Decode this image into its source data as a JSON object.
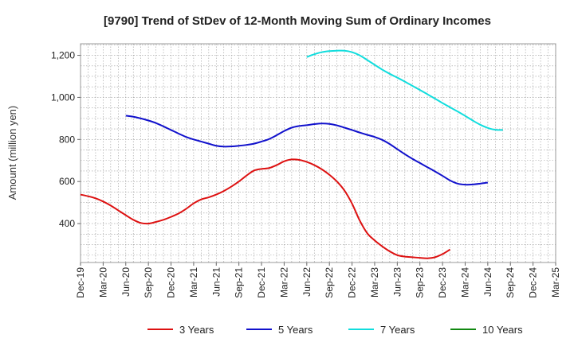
{
  "chart_data": {
    "type": "line",
    "title": "[9790]  Trend of StDev of 12-Month Moving Sum of Ordinary Incomes",
    "xlabel": "",
    "ylabel": "Amount (million yen)",
    "x_tick_labels": [
      "Dec-19",
      "Mar-20",
      "Jun-20",
      "Sep-20",
      "Dec-20",
      "Mar-21",
      "Jun-21",
      "Sep-21",
      "Dec-21",
      "Mar-22",
      "Jun-22",
      "Sep-22",
      "Dec-22",
      "Mar-23",
      "Jun-23",
      "Sep-23",
      "Dec-23",
      "Mar-24",
      "Jun-24",
      "Sep-24",
      "Dec-24",
      "Mar-25"
    ],
    "y_ticks": [
      400,
      600,
      800,
      1000,
      1200
    ],
    "y_tick_labels": [
      "400",
      "600",
      "800",
      "1,000",
      "1,200"
    ],
    "ylim": [
      215,
      1255
    ],
    "grid": true,
    "legend_position": "bottom",
    "series": [
      {
        "name": "3 Years",
        "color": "#dd1111",
        "start_index": 0,
        "values": [
          538,
          530,
          520,
          505,
          486,
          463,
          440,
          418,
          403,
          400,
          408,
          418,
          432,
          448,
          470,
          496,
          515,
          525,
          538,
          555,
          576,
          600,
          628,
          652,
          660,
          664,
          678,
          696,
          705,
          703,
          693,
          678,
          658,
          632,
          600,
          557,
          495,
          416,
          355,
          320,
          292,
          268,
          250,
          243,
          240,
          237,
          235,
          240,
          255,
          277
        ]
      },
      {
        "name": "5 Years",
        "color": "#1111cc",
        "start_index": 6,
        "values": [
          913,
          908,
          900,
          890,
          878,
          862,
          845,
          828,
          812,
          800,
          790,
          780,
          770,
          766,
          767,
          770,
          774,
          780,
          790,
          802,
          820,
          840,
          856,
          864,
          868,
          873,
          876,
          874,
          867,
          856,
          845,
          833,
          822,
          812,
          798,
          778,
          754,
          730,
          708,
          688,
          668,
          648,
          627,
          605,
          590,
          585,
          586,
          590,
          595
        ]
      },
      {
        "name": "7 Years",
        "color": "#11dddd",
        "start_index": 30,
        "values": [
          1192,
          1205,
          1215,
          1220,
          1222,
          1222,
          1215,
          1200,
          1178,
          1155,
          1132,
          1112,
          1094,
          1075,
          1055,
          1035,
          1015,
          994,
          973,
          953,
          933,
          912,
          890,
          870,
          855,
          846,
          845
        ]
      },
      {
        "name": "10 Years",
        "color": "#118811",
        "start_index": 0,
        "values": []
      }
    ]
  }
}
